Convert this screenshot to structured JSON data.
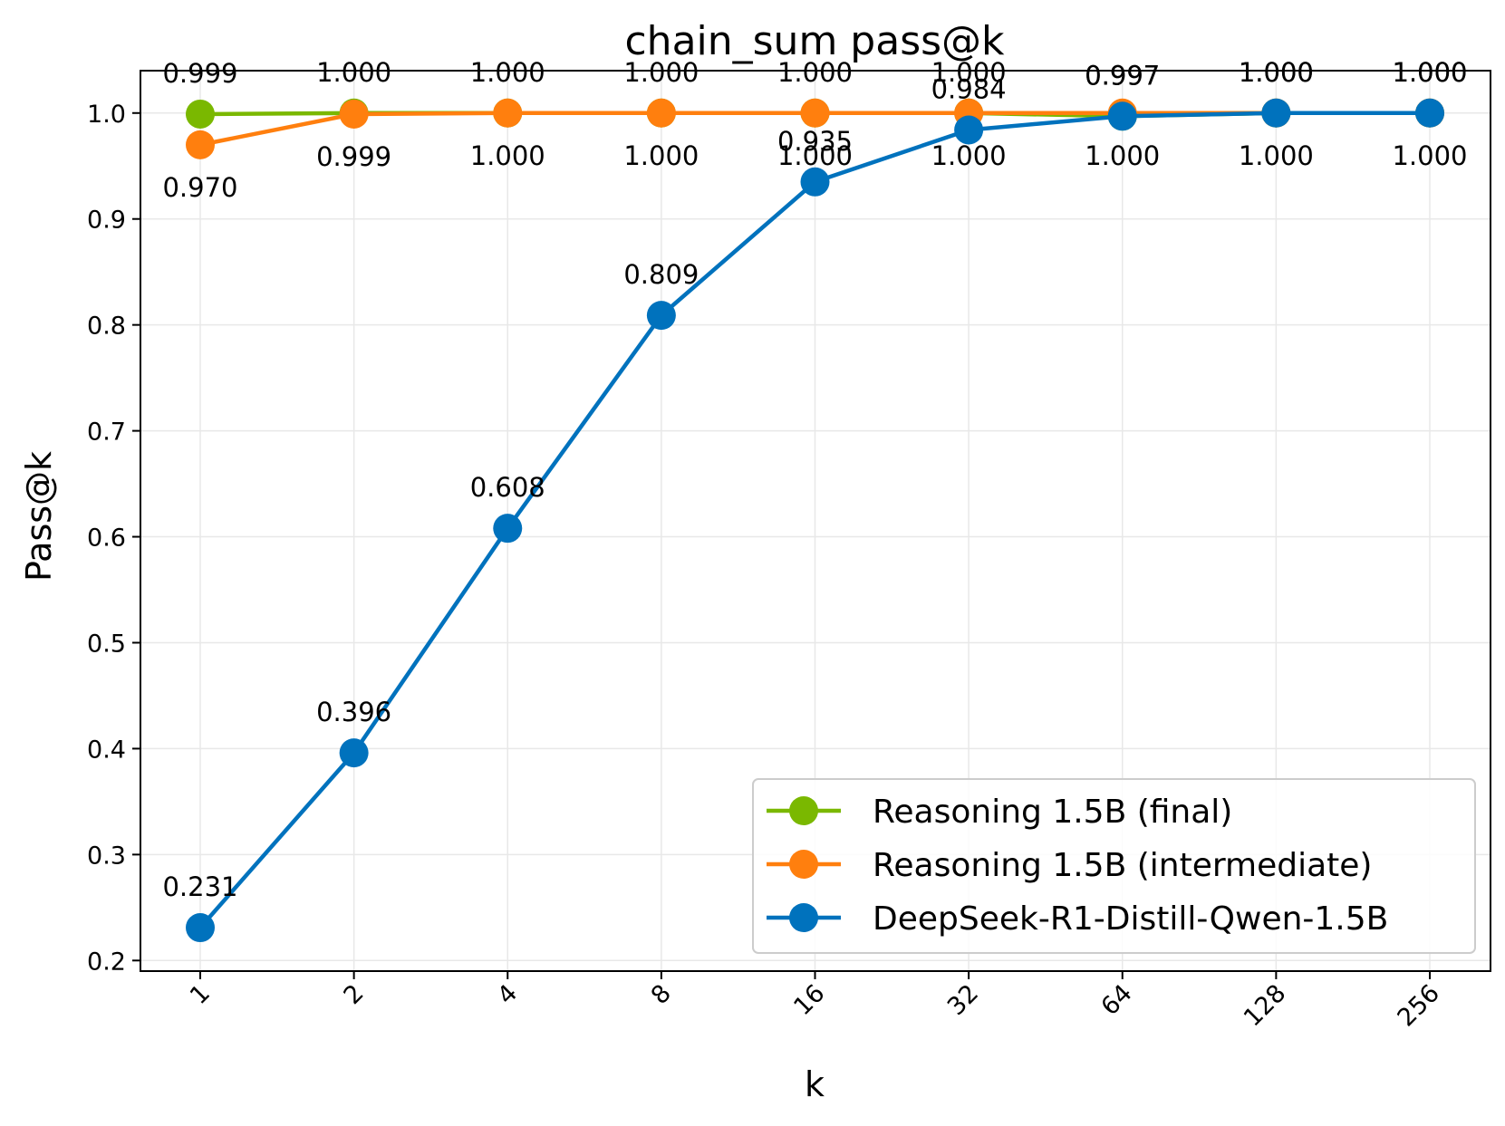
{
  "chart_data": {
    "type": "line",
    "title": "chain_sum pass@k",
    "xlabel": "k",
    "ylabel": "Pass@k",
    "categories": [
      "1",
      "2",
      "4",
      "8",
      "16",
      "32",
      "64",
      "128",
      "256"
    ],
    "ylim": [
      0.19,
      1.04
    ],
    "yticks": [
      "0.2",
      "0.3",
      "0.4",
      "0.5",
      "0.6",
      "0.7",
      "0.8",
      "0.9",
      "1.0"
    ],
    "grid": true,
    "legend_position": "bottom-right",
    "series": [
      {
        "name": "Reasoning 1.5B (final)",
        "color": "#7ab800",
        "values": [
          0.999,
          1.0,
          1.0,
          1.0,
          1.0,
          1.0,
          0.997,
          1.0,
          1.0
        ],
        "labels": [
          "0.999",
          "1.000",
          "1.000",
          "1.000",
          "1.000",
          "1.000",
          "0.997",
          "1.000",
          "1.000"
        ],
        "label_position": "above"
      },
      {
        "name": "Reasoning 1.5B (intermediate)",
        "color": "#ff7f0e",
        "values": [
          0.97,
          0.999,
          1.0,
          1.0,
          1.0,
          1.0,
          1.0,
          1.0,
          1.0
        ],
        "labels": [
          "0.970",
          "0.999",
          "1.000",
          "1.000",
          "1.000",
          "1.000",
          "1.000",
          "1.000",
          "1.000"
        ],
        "label_position": "below"
      },
      {
        "name": "DeepSeek-R1-Distill-Qwen-1.5B",
        "color": "#0072bd",
        "values": [
          0.231,
          0.396,
          0.608,
          0.809,
          0.935,
          0.984,
          0.997,
          1.0,
          1.0
        ],
        "labels": [
          "0.231",
          "0.396",
          "0.608",
          "0.809",
          "0.935",
          "0.984",
          "0.997",
          "1.000",
          "1.000"
        ],
        "label_position": "above"
      }
    ]
  }
}
